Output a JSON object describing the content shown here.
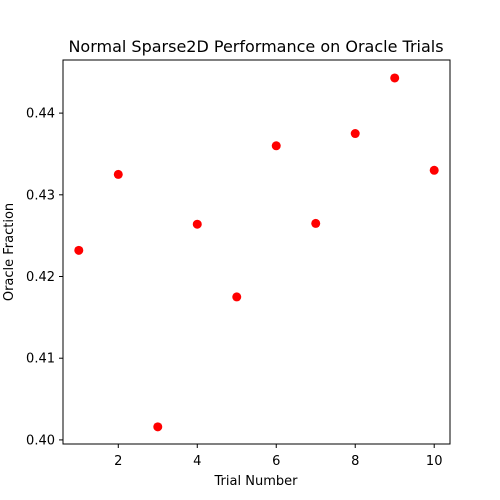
{
  "chart_data": {
    "type": "scatter",
    "title": "Normal Sparse2D Performance on Oracle Trials",
    "xlabel": "Trial Number",
    "ylabel": "Oracle Fraction",
    "x": [
      1,
      2,
      3,
      4,
      5,
      6,
      7,
      8,
      9,
      10
    ],
    "y": [
      0.4232,
      0.4325,
      0.4016,
      0.4264,
      0.4175,
      0.436,
      0.4265,
      0.4375,
      0.4443,
      0.433
    ],
    "xlim": [
      0.6,
      10.4
    ],
    "ylim": [
      0.3995,
      0.4465
    ],
    "xticks": [
      2,
      4,
      6,
      8,
      10
    ],
    "yticks": [
      0.4,
      0.41,
      0.42,
      0.43,
      0.44
    ],
    "xtick_labels": [
      "2",
      "4",
      "6",
      "8",
      "10"
    ],
    "ytick_labels": [
      "0.40",
      "0.41",
      "0.42",
      "0.43",
      "0.44"
    ],
    "marker_color": "#ff0000",
    "grid": false,
    "legend": null
  }
}
